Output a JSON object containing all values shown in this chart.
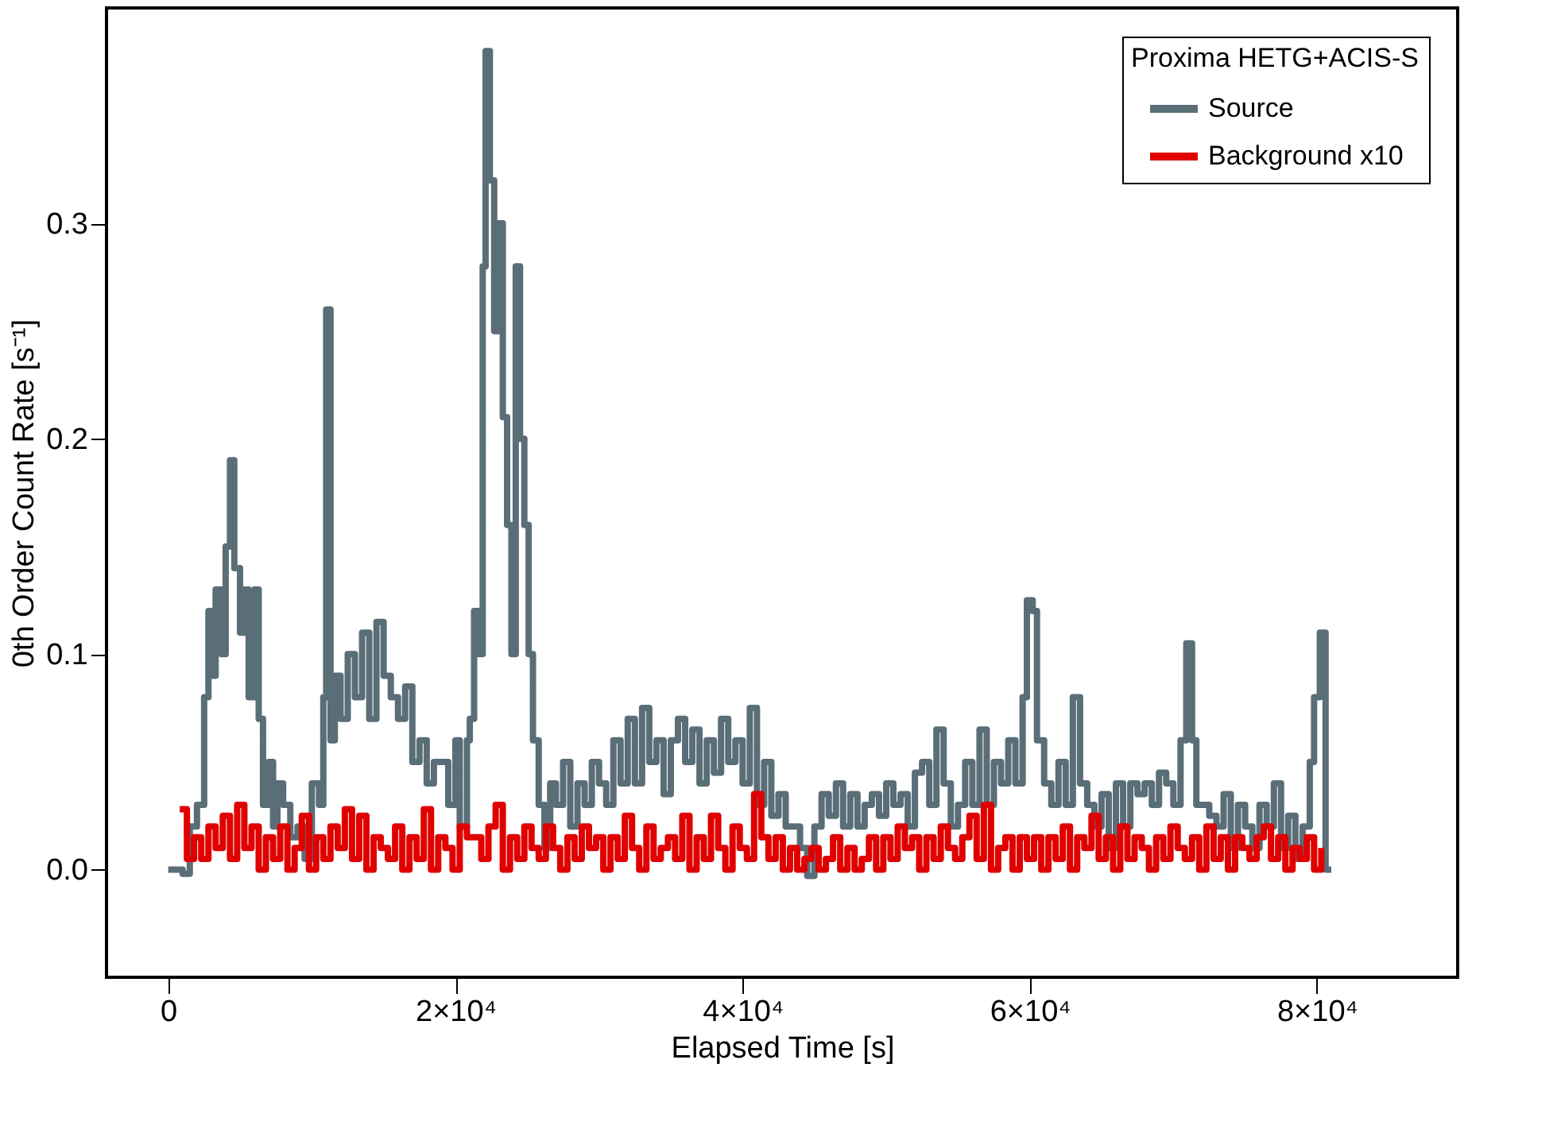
{
  "chart_data": {
    "type": "step",
    "xlabel": "Elapsed Time [s]",
    "ylabel": "0th Order Count Rate [s⁻¹]",
    "legend_title": "Proxima HETG+ACIS-S",
    "xlim": [
      -4300,
      89800
    ],
    "ylim": [
      -0.05,
      0.4
    ],
    "xticks": [
      0,
      {
        "value": 20000,
        "label": "2×10⁴"
      },
      {
        "value": 40000,
        "label": "4×10⁴"
      },
      {
        "value": 60000,
        "label": "6×10⁴"
      },
      {
        "value": 80000,
        "label": "8×10⁴"
      }
    ],
    "yticks": [
      {
        "value": 0,
        "label": "0.0"
      },
      0.1,
      0.2,
      0.3
    ],
    "grid": false,
    "legend": "top right",
    "line_style": "solid",
    "marker": "none",
    "series": [
      {
        "name": "Source",
        "color": "#5a6e78",
        "x": [
          0,
          500,
          1000,
          1500,
          2000,
          2500,
          2800,
          3000,
          3300,
          3700,
          4000,
          4300,
          4600,
          5000,
          5300,
          5600,
          6000,
          6300,
          6600,
          7000,
          7300,
          7600,
          8000,
          8500,
          9000,
          9500,
          10000,
          10500,
          10800,
          11000,
          11300,
          11600,
          12000,
          12500,
          13000,
          13500,
          14000,
          14500,
          15000,
          15500,
          16000,
          16500,
          17000,
          17500,
          18000,
          18500,
          19000,
          19500,
          20000,
          20300,
          20800,
          21000,
          21300,
          21600,
          21900,
          22100,
          22400,
          22700,
          23000,
          23300,
          23600,
          23900,
          24200,
          24500,
          24800,
          25100,
          25400,
          25800,
          26200,
          26600,
          27000,
          27500,
          28000,
          28500,
          29000,
          29500,
          30000,
          30500,
          31000,
          31500,
          32000,
          32500,
          33000,
          33500,
          34000,
          34500,
          35000,
          35500,
          36000,
          36500,
          37000,
          37500,
          38000,
          38500,
          39000,
          39500,
          40000,
          40500,
          41000,
          41500,
          42000,
          42500,
          43000,
          43500,
          44000,
          44500,
          45000,
          45500,
          46000,
          46500,
          47000,
          47500,
          48000,
          48500,
          49000,
          49500,
          50000,
          50500,
          51000,
          51500,
          52000,
          52500,
          53000,
          53500,
          54000,
          54500,
          55000,
          55500,
          56000,
          56500,
          57000,
          57500,
          58000,
          58500,
          59000,
          59500,
          59800,
          60200,
          60500,
          61000,
          61500,
          62000,
          62500,
          63000,
          63500,
          64000,
          64500,
          65000,
          65500,
          66000,
          66500,
          67000,
          67500,
          68000,
          68500,
          69000,
          69500,
          70000,
          70500,
          70900,
          71300,
          71600,
          72000,
          72500,
          73000,
          73500,
          74000,
          74500,
          75000,
          75500,
          76000,
          76500,
          77000,
          77500,
          78000,
          78500,
          79000,
          79500,
          79800,
          80200,
          80600,
          81000
        ],
        "values": [
          0.0,
          0.0,
          -0.002,
          0.02,
          0.03,
          0.08,
          0.12,
          0.09,
          0.13,
          0.1,
          0.15,
          0.19,
          0.14,
          0.11,
          0.13,
          0.08,
          0.13,
          0.07,
          0.03,
          0.05,
          0.02,
          0.04,
          0.03,
          0.015,
          0.02,
          0.005,
          0.04,
          0.03,
          0.08,
          0.26,
          0.06,
          0.09,
          0.07,
          0.1,
          0.08,
          0.11,
          0.07,
          0.115,
          0.09,
          0.08,
          0.07,
          0.085,
          0.05,
          0.06,
          0.04,
          0.05,
          0.05,
          0.03,
          0.06,
          0.02,
          0.06,
          0.07,
          0.12,
          0.1,
          0.28,
          0.38,
          0.32,
          0.25,
          0.3,
          0.21,
          0.16,
          0.1,
          0.28,
          0.2,
          0.16,
          0.1,
          0.06,
          0.03,
          0.01,
          0.04,
          0.03,
          0.05,
          0.02,
          0.04,
          0.03,
          0.05,
          0.04,
          0.03,
          0.06,
          0.04,
          0.07,
          0.04,
          0.075,
          0.05,
          0.06,
          0.035,
          0.06,
          0.07,
          0.05,
          0.065,
          0.04,
          0.06,
          0.045,
          0.07,
          0.05,
          0.06,
          0.04,
          0.075,
          0.03,
          0.05,
          0.025,
          0.035,
          0.02,
          0.02,
          0.01,
          -0.003,
          0.02,
          0.035,
          0.025,
          0.04,
          0.02,
          0.035,
          0.02,
          0.03,
          0.035,
          0.025,
          0.04,
          0.03,
          0.035,
          0.02,
          0.045,
          0.05,
          0.03,
          0.065,
          0.04,
          0.02,
          0.03,
          0.05,
          0.03,
          0.065,
          0.03,
          0.05,
          0.04,
          0.06,
          0.04,
          0.08,
          0.125,
          0.12,
          0.06,
          0.04,
          0.03,
          0.05,
          0.03,
          0.08,
          0.04,
          0.03,
          0.02,
          0.035,
          0.01,
          0.04,
          0.02,
          0.04,
          0.035,
          0.04,
          0.03,
          0.045,
          0.04,
          0.03,
          0.06,
          0.105,
          0.06,
          0.03,
          0.03,
          0.025,
          0.02,
          0.035,
          0.01,
          0.03,
          0.02,
          0.01,
          0.03,
          0.02,
          0.04,
          0.01,
          0.025,
          0.005,
          0.02,
          0.05,
          0.08,
          0.11,
          0.0,
          0.0
        ]
      },
      {
        "name": "Background x10",
        "color": "#e00000",
        "x": [
          800,
          1300,
          1800,
          2300,
          2800,
          3300,
          3800,
          4300,
          4800,
          5300,
          5800,
          6300,
          6800,
          7300,
          7800,
          8300,
          8800,
          9300,
          9800,
          10300,
          10800,
          11300,
          11800,
          12300,
          12800,
          13300,
          13800,
          14300,
          14800,
          15300,
          15800,
          16300,
          16800,
          17300,
          17800,
          18300,
          18800,
          19300,
          19800,
          20300,
          20800,
          21300,
          21800,
          22300,
          22800,
          23300,
          23800,
          24300,
          24800,
          25300,
          25800,
          26300,
          26800,
          27300,
          27800,
          28300,
          28800,
          29300,
          29800,
          30300,
          30800,
          31300,
          31800,
          32300,
          32800,
          33300,
          33800,
          34300,
          34800,
          35300,
          35800,
          36300,
          36800,
          37300,
          37800,
          38300,
          38800,
          39300,
          39800,
          40300,
          40800,
          41300,
          41800,
          42300,
          42800,
          43300,
          43800,
          44300,
          44800,
          45300,
          45800,
          46300,
          46800,
          47300,
          47800,
          48300,
          48800,
          49300,
          49800,
          50300,
          50800,
          51300,
          51800,
          52300,
          52800,
          53300,
          53800,
          54300,
          54800,
          55300,
          55800,
          56300,
          56800,
          57300,
          57800,
          58300,
          58800,
          59300,
          59800,
          60300,
          60800,
          61300,
          61800,
          62300,
          62800,
          63300,
          63800,
          64300,
          64800,
          65300,
          65800,
          66300,
          66800,
          67300,
          67800,
          68300,
          68800,
          69300,
          69800,
          70300,
          70800,
          71300,
          71800,
          72300,
          72800,
          73300,
          73800,
          74300,
          74800,
          75300,
          75800,
          76300,
          76800,
          77300,
          77800,
          78300,
          78800,
          79300,
          79800,
          80300
        ],
        "values": [
          0.028,
          0.005,
          0.015,
          0.005,
          0.02,
          0.01,
          0.025,
          0.005,
          0.03,
          0.01,
          0.02,
          0.0,
          0.015,
          0.005,
          0.02,
          0.0,
          0.01,
          0.025,
          0.0,
          0.015,
          0.005,
          0.02,
          0.01,
          0.028,
          0.005,
          0.025,
          0.0,
          0.015,
          0.01,
          0.005,
          0.02,
          0.0,
          0.015,
          0.005,
          0.028,
          0.0,
          0.015,
          0.01,
          0.0,
          0.02,
          0.015,
          0.015,
          0.005,
          0.02,
          0.03,
          0.0,
          0.015,
          0.005,
          0.02,
          0.01,
          0.005,
          0.02,
          0.01,
          0.0,
          0.015,
          0.005,
          0.02,
          0.01,
          0.015,
          0.0,
          0.015,
          0.005,
          0.025,
          0.01,
          0.0,
          0.02,
          0.005,
          0.01,
          0.015,
          0.005,
          0.025,
          0.0,
          0.015,
          0.005,
          0.025,
          0.01,
          0.0,
          0.02,
          0.01,
          0.005,
          0.035,
          0.015,
          0.005,
          0.015,
          0.0,
          0.01,
          0.0,
          0.005,
          0.01,
          0.0,
          0.005,
          0.015,
          0.0,
          0.01,
          0.0,
          0.005,
          0.015,
          0.0,
          0.015,
          0.005,
          0.02,
          0.01,
          0.015,
          0.0,
          0.015,
          0.005,
          0.02,
          0.01,
          0.005,
          0.015,
          0.025,
          0.005,
          0.03,
          0.0,
          0.01,
          0.015,
          0.0,
          0.015,
          0.005,
          0.015,
          0.0,
          0.015,
          0.005,
          0.02,
          0.0,
          0.015,
          0.01,
          0.025,
          0.005,
          0.015,
          0.0,
          0.02,
          0.005,
          0.015,
          0.01,
          0.0,
          0.015,
          0.005,
          0.02,
          0.01,
          0.005,
          0.015,
          0.0,
          0.02,
          0.005,
          0.015,
          0.0,
          0.015,
          0.01,
          0.005,
          0.015,
          0.02,
          0.005,
          0.015,
          0.0,
          0.01,
          0.005,
          0.015,
          0.0,
          0.01
        ]
      }
    ]
  }
}
